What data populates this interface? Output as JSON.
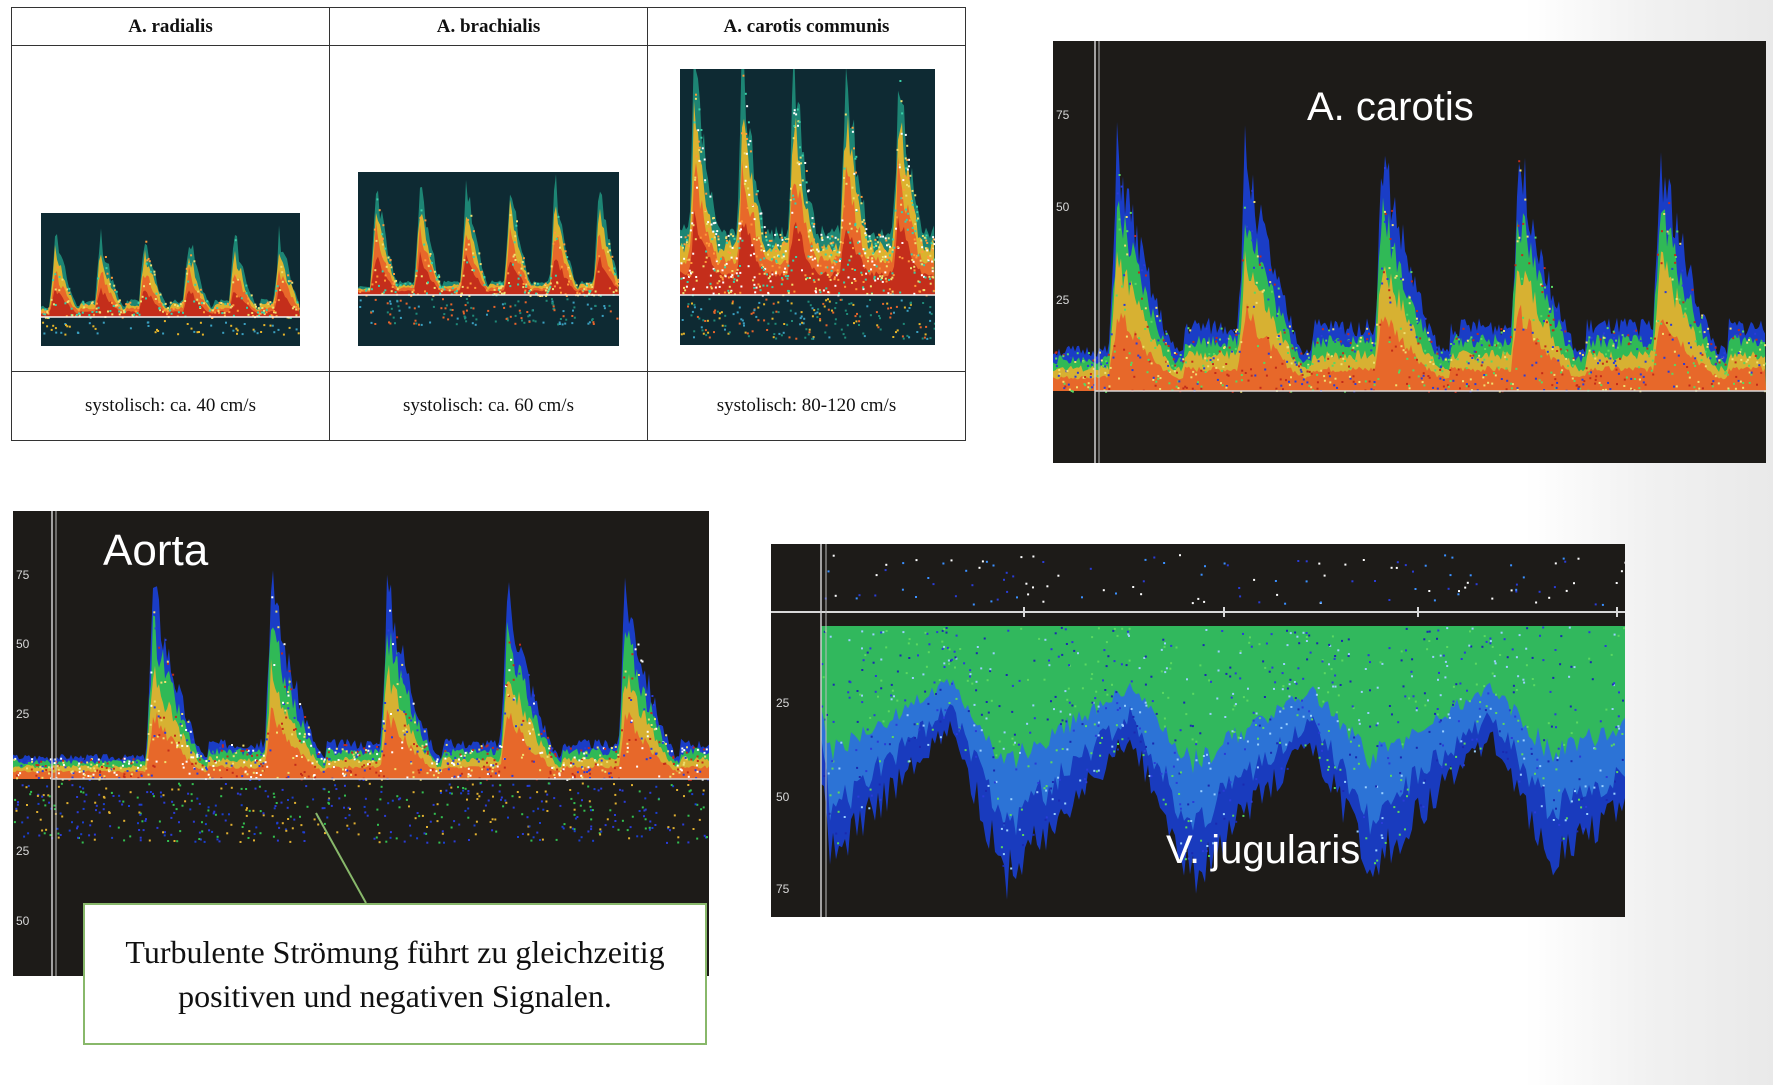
{
  "table": {
    "headers": [
      "A. radialis",
      "A. brachialis",
      "A. carotis communis"
    ],
    "values": [
      "systolisch: ca. 40 cm/s",
      "systolisch: ca. 60 cm/s",
      "systolisch: 80-120 cm/s"
    ]
  },
  "panels": {
    "carotis": {
      "label": "A. carotis",
      "ticks": [
        "75",
        "50",
        "25"
      ]
    },
    "aorta": {
      "label": "Aorta",
      "ticks": [
        "75",
        "50",
        "25",
        "25",
        "50"
      ]
    },
    "jugularis": {
      "label": "V. jugularis",
      "ticks": [
        "25",
        "50",
        "75"
      ]
    }
  },
  "callout": {
    "line1": "Turbulente Strömung führt zu gleichzeitig",
    "line2": "positiven und negativen Signalen."
  },
  "colors": {
    "spectrum_bg": "#0e2a33",
    "panel_bg": "#1d1b18",
    "arterial_signal": "#e8642a",
    "venous_signal": "#2a3cd8",
    "callout_border": "#88b86a"
  }
}
